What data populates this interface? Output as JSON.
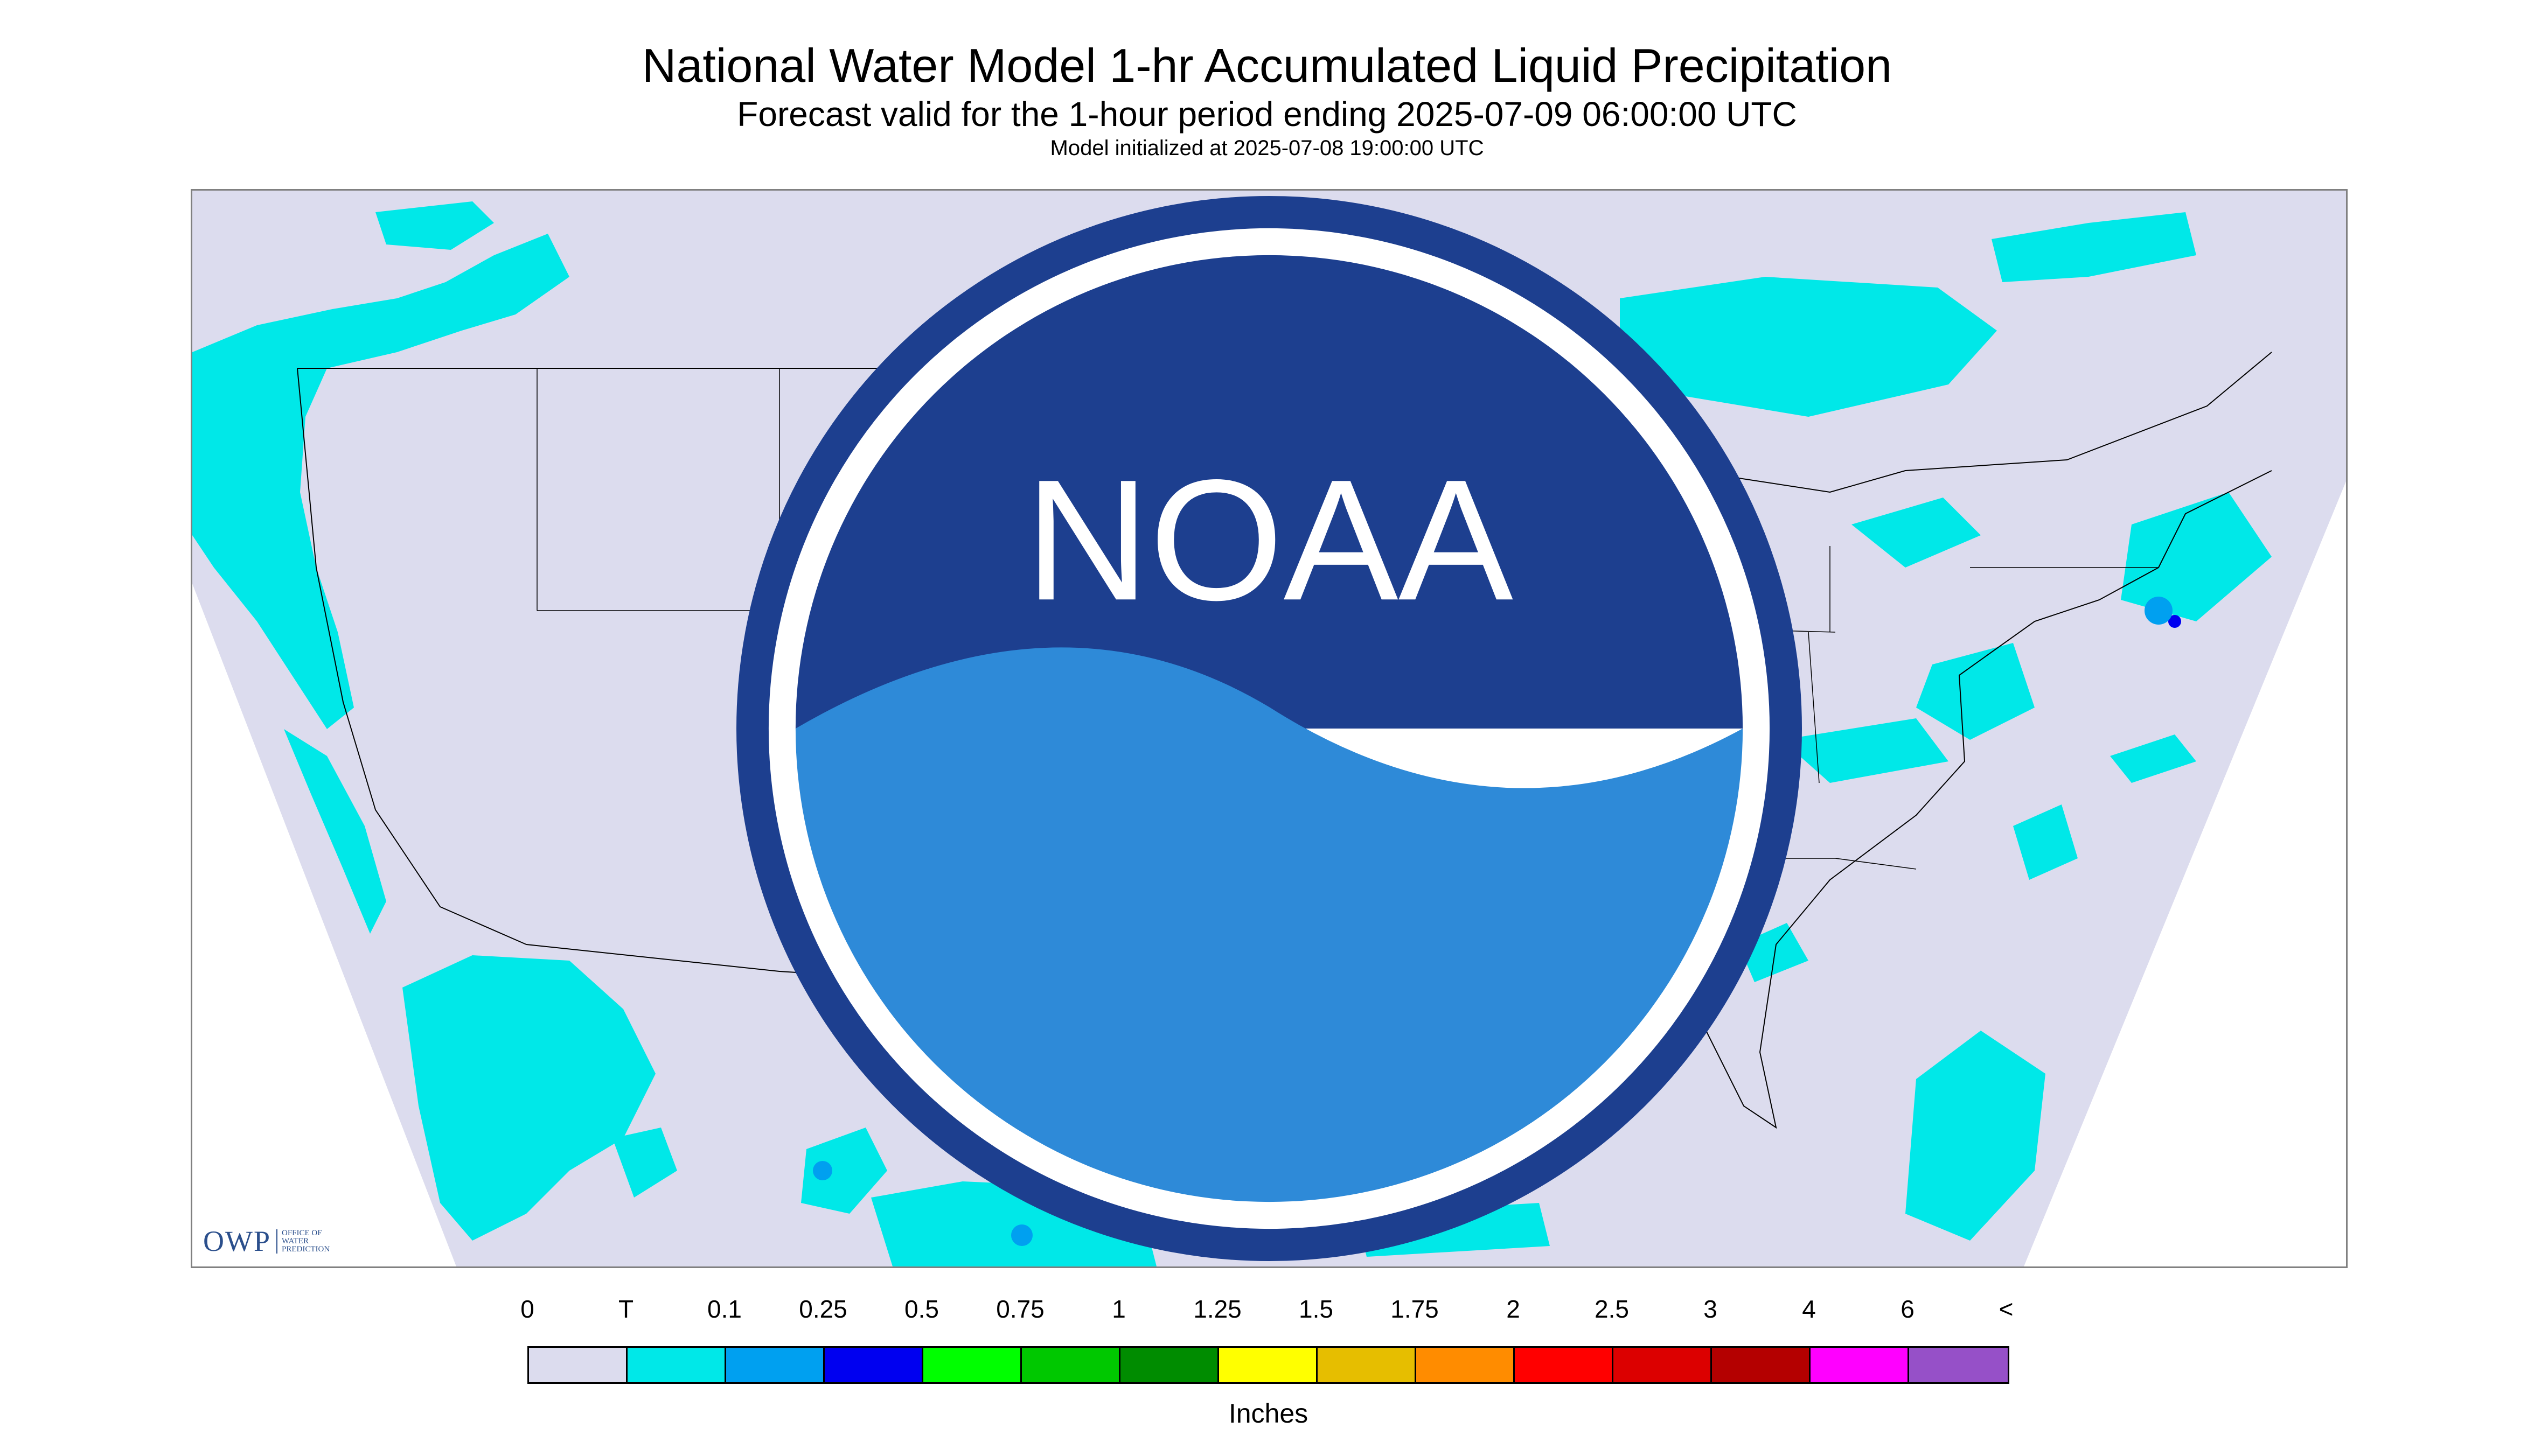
{
  "title": "National Water Model 1-hr Accumulated Liquid Precipitation",
  "subtitle": "Forecast valid for the 1-hour period ending 2025-07-09 06:00:00 UTC",
  "initialized": "Model initialized at 2025-07-08 19:00:00 UTC",
  "logos": {
    "owp_acronym": "OWP",
    "owp_full_lines": [
      "OFFICE OF",
      "WATER",
      "PREDICTION"
    ],
    "noaa": "NOAA"
  },
  "colors": {
    "background": "#dcdcee",
    "trace": "#00e8e8",
    "light_blue": "#00a0ff",
    "blue": "#0000ff",
    "boundary": "#000000"
  },
  "legend": {
    "labels": [
      "0",
      "T",
      "0.1",
      "0.25",
      "0.5",
      "0.75",
      "1",
      "1.25",
      "1.5",
      "1.75",
      "2",
      "2.5",
      "3",
      "4",
      "6",
      "<"
    ],
    "colors": [
      "#dcdcee",
      "#00e8e8",
      "#00a0f0",
      "#0000f0",
      "#00ff00",
      "#00c800",
      "#008c00",
      "#ffff00",
      "#e6be00",
      "#ff8c00",
      "#ff0000",
      "#dc0000",
      "#b40000",
      "#ff00ff",
      "#9650c8"
    ],
    "units": "Inches"
  }
}
